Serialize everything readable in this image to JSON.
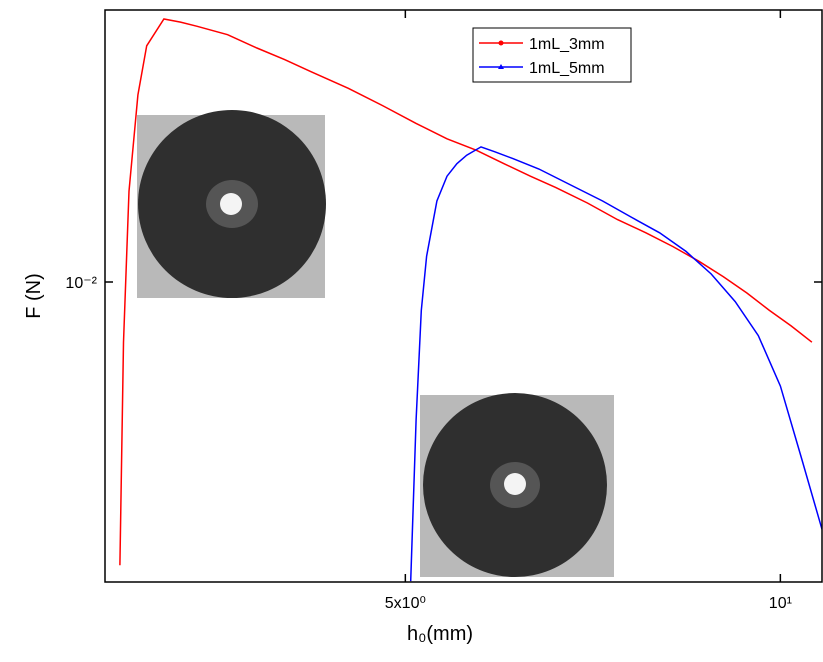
{
  "chart_data": {
    "type": "line",
    "xlabel": "h₀(mm)",
    "ylabel": "F (N)",
    "xscale": "log",
    "yscale": "log",
    "xlim": [
      2.87,
      10.8
    ],
    "ylim": [
      0.00329,
      0.0274
    ],
    "xticks": [
      {
        "value": 5,
        "label": "5x10⁰"
      },
      {
        "value": 10,
        "label": "10¹"
      }
    ],
    "yticks": [
      {
        "value": 0.01,
        "label": "10⁻²"
      }
    ],
    "legend": "upper center",
    "series": [
      {
        "name": "1mL_3mm",
        "color": "#ff0000",
        "x": [
          2.95,
          2.97,
          3.0,
          3.05,
          3.1,
          3.2,
          3.3,
          3.4,
          3.6,
          3.8,
          4.0,
          4.2,
          4.5,
          4.8,
          5.1,
          5.4,
          5.7,
          6.0,
          6.3,
          6.6,
          7.0,
          7.4,
          7.8,
          8.2,
          8.6,
          9.0,
          9.4,
          9.8,
          10.2,
          10.6
        ],
        "values": [
          0.0035,
          0.008,
          0.014,
          0.02,
          0.024,
          0.0265,
          0.0262,
          0.0258,
          0.025,
          0.0238,
          0.0228,
          0.0218,
          0.0205,
          0.0192,
          0.018,
          0.017,
          0.0163,
          0.0155,
          0.0148,
          0.0142,
          0.0134,
          0.0126,
          0.012,
          0.0114,
          0.0108,
          0.0102,
          0.0096,
          0.009,
          0.0085,
          0.008
        ]
      },
      {
        "name": "1mL_5mm",
        "color": "#0000ff",
        "x": [
          5.05,
          5.1,
          5.15,
          5.2,
          5.3,
          5.4,
          5.5,
          5.6,
          5.75,
          5.9,
          6.1,
          6.4,
          6.8,
          7.2,
          7.6,
          8.0,
          8.4,
          8.8,
          9.2,
          9.6,
          10.0,
          10.4,
          10.8
        ],
        "values": [
          0.0033,
          0.006,
          0.009,
          0.011,
          0.0135,
          0.0148,
          0.0155,
          0.016,
          0.0165,
          0.0162,
          0.0158,
          0.0152,
          0.0143,
          0.0135,
          0.0127,
          0.012,
          0.0112,
          0.0103,
          0.0093,
          0.0082,
          0.0068,
          0.0052,
          0.004
        ]
      }
    ]
  }
}
